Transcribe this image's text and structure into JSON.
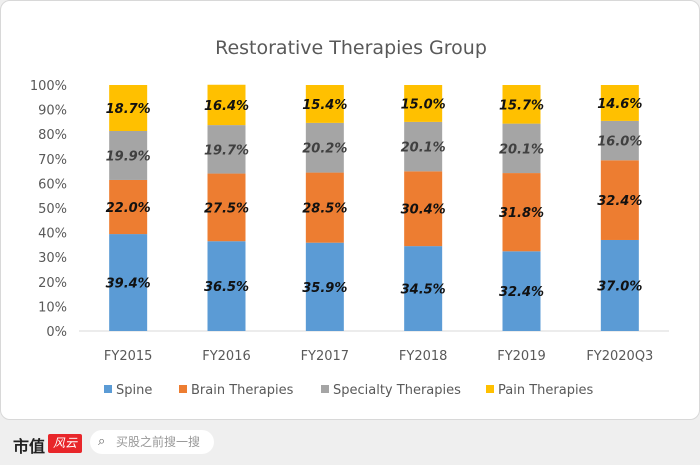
{
  "chart_data": {
    "type": "bar",
    "stacked": true,
    "title": "Restorative Therapies Group",
    "categories": [
      "FY2015",
      "FY2016",
      "FY2017",
      "FY2018",
      "FY2019",
      "FY2020Q3"
    ],
    "series": [
      {
        "name": "Spine",
        "color": "#5b9bd5",
        "values": [
          39.4,
          36.5,
          35.9,
          34.5,
          32.4,
          37.0
        ],
        "labels": [
          "39.4%",
          "36.5%",
          "35.9%",
          "34.5%",
          "32.4%",
          "37.0%"
        ]
      },
      {
        "name": "Brain Therapies",
        "color": "#ed7d31",
        "values": [
          22.0,
          27.5,
          28.5,
          30.4,
          31.8,
          32.4
        ],
        "labels": [
          "22.0%",
          "27.5%",
          "28.5%",
          "30.4%",
          "31.8%",
          "32.4%"
        ]
      },
      {
        "name": "Specialty Therapies",
        "color": "#a5a5a5",
        "values": [
          19.9,
          19.7,
          20.2,
          20.1,
          20.1,
          16.0
        ],
        "labels": [
          "19.9%",
          "19.7%",
          "20.2%",
          "20.1%",
          "20.1%",
          "16.0%"
        ]
      },
      {
        "name": "Pain Therapies",
        "color": "#ffc000",
        "values": [
          18.7,
          16.4,
          15.4,
          15.0,
          15.7,
          14.6
        ],
        "labels": [
          "18.7%",
          "16.4%",
          "15.4%",
          "15.0%",
          "15.7%",
          "14.6%"
        ]
      }
    ],
    "yticks": [
      "0%",
      "10%",
      "20%",
      "30%",
      "40%",
      "50%",
      "60%",
      "70%",
      "80%",
      "90%",
      "100%"
    ],
    "ylim": [
      0,
      100
    ],
    "grid": false,
    "legend": "bottom"
  },
  "footer": {
    "logo": "市值",
    "logo_mark": "风云",
    "search_placeholder": "买股之前搜一搜",
    "search_icon": "search-icon"
  }
}
